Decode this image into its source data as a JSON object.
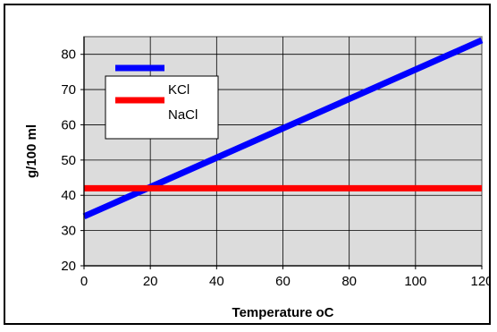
{
  "chart_data": {
    "type": "line",
    "title": "",
    "xlabel": "Temperature oC",
    "ylabel": "g/100 ml",
    "xlim": [
      0,
      120
    ],
    "ylim": [
      20,
      85
    ],
    "xticks": [
      0,
      20,
      40,
      60,
      80,
      100,
      120
    ],
    "yticks": [
      20,
      30,
      40,
      50,
      60,
      70,
      80
    ],
    "grid": true,
    "legend_position": "top-left",
    "series": [
      {
        "name": "KCl",
        "color": "#0000ff",
        "x": [
          0,
          120
        ],
        "y": [
          34,
          84
        ]
      },
      {
        "name": "NaCl",
        "color": "#ff0000",
        "x": [
          0,
          120
        ],
        "y": [
          42,
          42
        ]
      }
    ]
  },
  "colors": {
    "plot_background": "#dcdcdc",
    "grid": "#000000",
    "plot_border": "#808080"
  }
}
